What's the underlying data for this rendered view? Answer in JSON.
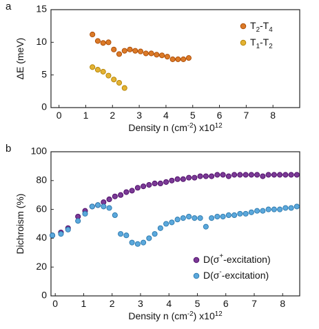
{
  "panels": [
    {
      "label": "a",
      "chart_data": {
        "type": "scatter",
        "xlabel": "Density n (cm⁻²) x10¹²",
        "ylabel": "ΔE (meV)",
        "xlim": [
          -0.3,
          9
        ],
        "ylim": [
          0,
          15
        ],
        "xticks": [
          "0",
          "1",
          "2",
          "3",
          "4",
          "5",
          "6",
          "7",
          "8"
        ],
        "yticks": [
          "0",
          "5",
          "10",
          "15"
        ],
        "legend_position": "top-right",
        "series": [
          {
            "name": "T₂-T₄",
            "color": "#DB7A28",
            "x": [
              1.25,
              1.45,
              1.65,
              1.85,
              2.05,
              2.25,
              2.45,
              2.65,
              2.85,
              3.05,
              3.25,
              3.45,
              3.65,
              3.85,
              4.05,
              4.25,
              4.45,
              4.65,
              4.85
            ],
            "y": [
              11.2,
              10.2,
              9.9,
              10.0,
              8.9,
              8.2,
              8.7,
              8.9,
              8.7,
              8.6,
              8.3,
              8.3,
              8.1,
              8.0,
              7.8,
              7.4,
              7.4,
              7.4,
              7.6
            ]
          },
          {
            "name": "T₁-T₂",
            "color": "#E3B233",
            "x": [
              1.25,
              1.45,
              1.65,
              1.85,
              2.05,
              2.25,
              2.45
            ],
            "y": [
              6.2,
              5.8,
              5.5,
              4.9,
              4.3,
              3.8,
              3.0
            ]
          }
        ]
      }
    },
    {
      "label": "b",
      "chart_data": {
        "type": "scatter",
        "xlabel": "Density n (cm⁻²) x10¹²",
        "ylabel": "Dichroism (%)",
        "xlim": [
          -0.15,
          8.6
        ],
        "ylim": [
          0,
          100
        ],
        "xticks": [
          "0",
          "1",
          "2",
          "3",
          "4",
          "5",
          "6",
          "7",
          "8"
        ],
        "yticks": [
          "0",
          "20",
          "40",
          "60",
          "80",
          "100"
        ],
        "legend_position": "bottom-right",
        "series": [
          {
            "name": "D(σ⁺-excitation)",
            "color": "#7B3A96",
            "x": [
              -0.1,
              0.2,
              0.45,
              0.8,
              1.05,
              1.3,
              1.5,
              1.7,
              1.9,
              2.1,
              2.3,
              2.5,
              2.7,
              2.9,
              3.1,
              3.3,
              3.5,
              3.7,
              3.9,
              4.1,
              4.3,
              4.5,
              4.7,
              4.9,
              5.1,
              5.3,
              5.5,
              5.7,
              5.9,
              6.1,
              6.3,
              6.5,
              6.7,
              6.9,
              7.1,
              7.3,
              7.5,
              7.7,
              7.9,
              8.1,
              8.3,
              8.5
            ],
            "y": [
              42,
              44,
              47,
              55,
              59,
              62,
              63,
              65,
              67,
              69,
              70,
              72,
              73,
              75,
              76,
              77,
              78,
              78,
              79,
              80,
              81,
              81,
              82,
              82,
              83,
              83,
              83,
              84,
              84,
              83,
              84,
              84,
              84,
              84,
              84,
              83,
              84,
              84,
              84,
              84,
              84,
              84
            ]
          },
          {
            "name": "D(σ⁻-excitation)",
            "color": "#5BA8DC",
            "x": [
              -0.1,
              0.2,
              0.45,
              0.8,
              1.05,
              1.3,
              1.5,
              1.7,
              1.9,
              2.1,
              2.3,
              2.5,
              2.7,
              2.9,
              3.1,
              3.3,
              3.5,
              3.7,
              3.9,
              4.1,
              4.3,
              4.5,
              4.7,
              4.9,
              5.1,
              5.3,
              5.5,
              5.7,
              5.9,
              6.1,
              6.3,
              6.5,
              6.7,
              6.9,
              7.1,
              7.3,
              7.5,
              7.7,
              7.9,
              8.1,
              8.3,
              8.5
            ],
            "y": [
              42,
              43,
              46,
              52,
              57,
              62,
              63,
              62,
              61,
              56,
              43,
              42,
              37,
              36,
              37,
              40,
              43,
              47,
              50,
              51,
              53,
              54,
              55,
              54,
              54,
              48,
              54,
              55,
              55,
              56,
              56,
              57,
              57,
              58,
              59,
              59,
              60,
              60,
              60,
              61,
              61,
              62
            ]
          }
        ]
      }
    }
  ]
}
